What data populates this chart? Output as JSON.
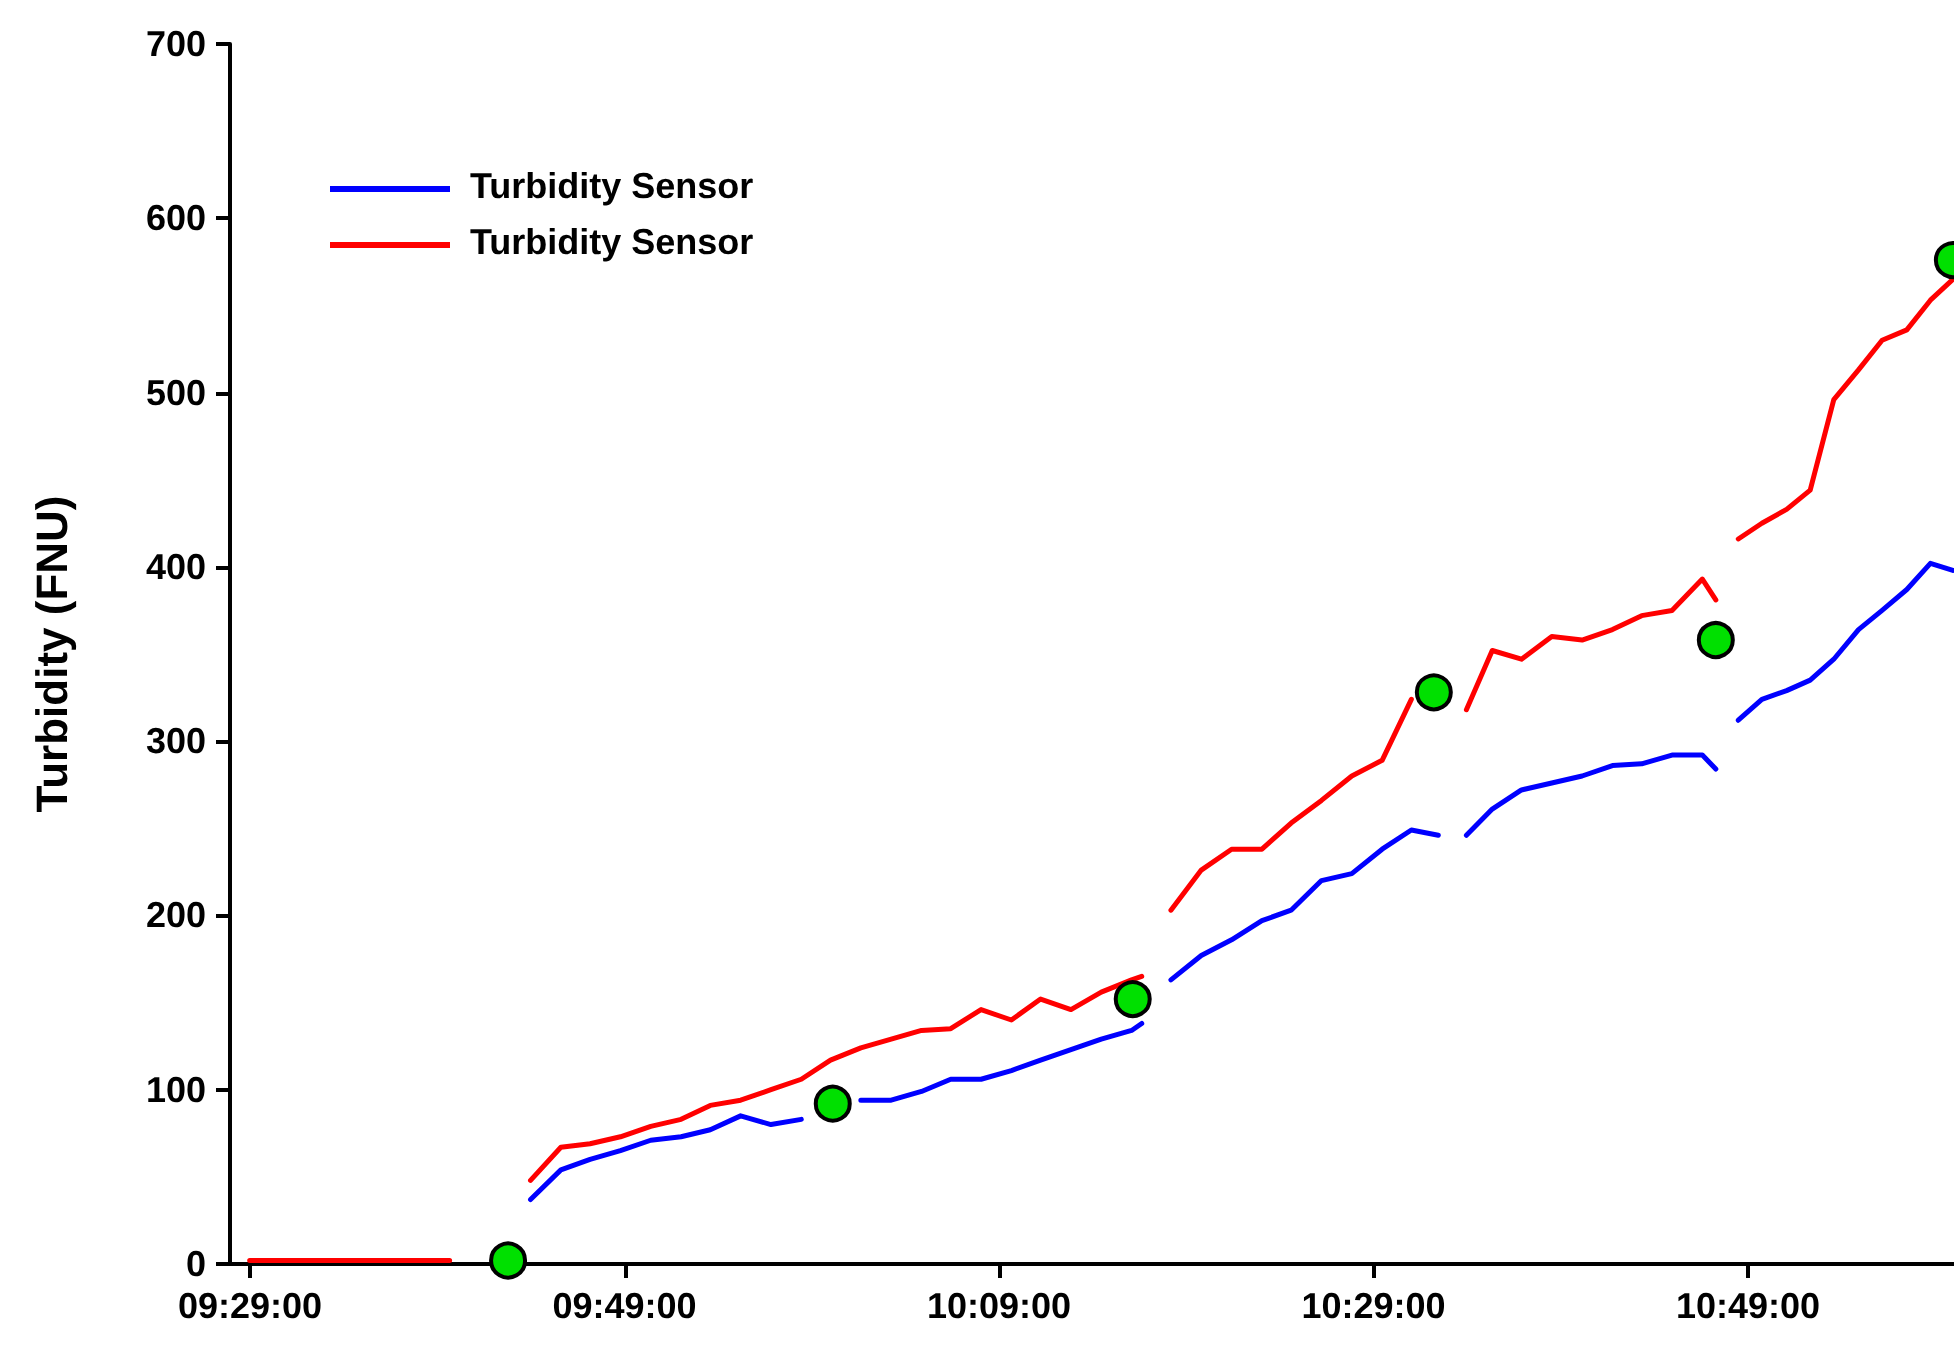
{
  "chart_data": {
    "type": "line",
    "ylabel": "Turbidity (FNU)",
    "xlim": [
      9.4655,
      11.0
    ],
    "ylim": [
      0,
      700
    ],
    "xticks": [
      {
        "value": 9.48333,
        "label": "09:29:00"
      },
      {
        "value": 9.81667,
        "label": "09:49:00"
      },
      {
        "value": 10.15,
        "label": "10:09:00"
      },
      {
        "value": 10.48333,
        "label": "10:29:00"
      },
      {
        "value": 10.81667,
        "label": "10:49:00"
      }
    ],
    "yticks": [
      0,
      100,
      200,
      300,
      400,
      500,
      600,
      700
    ],
    "grid": false,
    "legend": "top left",
    "line_style": "solid",
    "x": [
      9.483,
      9.528,
      9.572,
      9.617,
      9.661,
      9.706,
      9.715,
      9.733,
      9.76,
      9.786,
      9.813,
      9.84,
      9.867,
      9.893,
      9.92,
      9.947,
      9.974,
      10.0,
      10.027,
      10.054,
      10.081,
      10.107,
      10.134,
      10.161,
      10.187,
      10.214,
      10.241,
      10.268,
      10.277,
      10.286,
      10.303,
      10.33,
      10.357,
      10.384,
      10.41,
      10.437,
      10.464,
      10.491,
      10.517,
      10.541,
      10.553,
      10.566,
      10.589,
      10.615,
      10.642,
      10.669,
      10.696,
      10.722,
      10.749,
      10.776,
      10.788,
      10.797,
      10.808,
      10.829,
      10.851,
      10.872,
      10.893,
      10.915,
      10.936,
      10.958,
      10.979,
      10.999
    ],
    "series": [
      {
        "name": "Turbidity Sensor",
        "marker": "none",
        "color": "#0000ff",
        "values": [
          null,
          null,
          null,
          null,
          null,
          null,
          null,
          37,
          54,
          60,
          65,
          71,
          73,
          77,
          85,
          80,
          83,
          null,
          94,
          94,
          99,
          106,
          106,
          111,
          117,
          123,
          129,
          134,
          138,
          null,
          163,
          177,
          186,
          197,
          203,
          220,
          224,
          238,
          249,
          246,
          null,
          246,
          261,
          272,
          276,
          280,
          286,
          287,
          292,
          292,
          284,
          null,
          312,
          324,
          329,
          335,
          347,
          364,
          375,
          387,
          402,
          398
        ]
      },
      {
        "name": "Turbidity Sensor",
        "marker": "none",
        "color": "#ff0000",
        "values": [
          2,
          2,
          2,
          2,
          2,
          null,
          null,
          48,
          67,
          69,
          73,
          79,
          83,
          91,
          94,
          100,
          106,
          117,
          124,
          129,
          134,
          135,
          146,
          140,
          152,
          146,
          156,
          163,
          165,
          null,
          203,
          226,
          238,
          238,
          253,
          266,
          280,
          289,
          324,
          null,
          null,
          318,
          352,
          347,
          360,
          358,
          364,
          372,
          375,
          393,
          381,
          null,
          416,
          425,
          433,
          444,
          496,
          513,
          530,
          536,
          553,
          565
        ]
      },
      {
        "type": "scatter",
        "marker": "circle",
        "color": "#00e000",
        "x": [
          9.713,
          10.002,
          10.269,
          10.537,
          10.788,
          10.999
        ],
        "values": [
          2,
          92,
          152,
          328,
          358,
          576
        ]
      }
    ]
  }
}
